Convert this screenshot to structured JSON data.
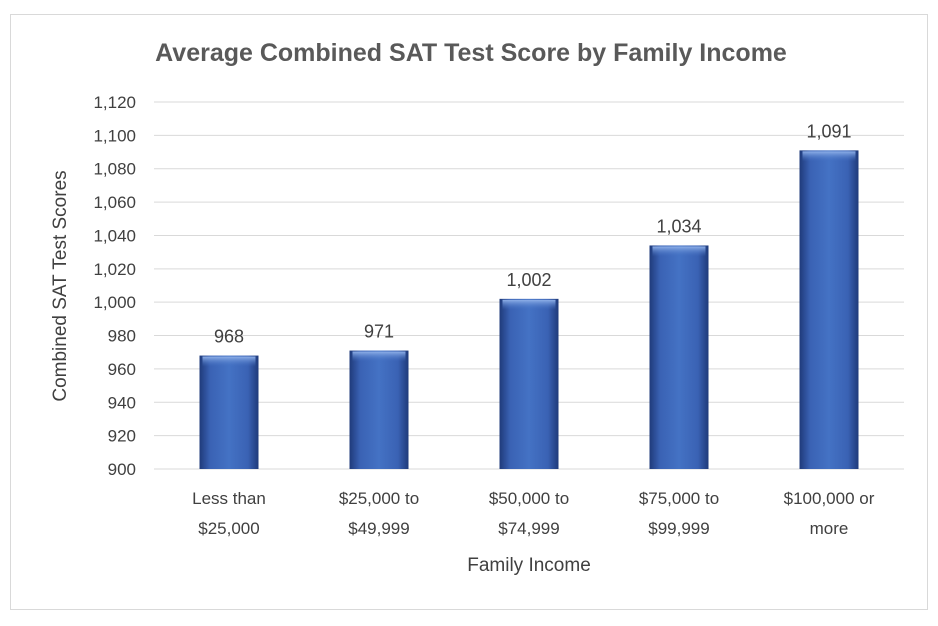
{
  "chart_data": {
    "type": "bar",
    "title": "Average Combined SAT Test Score by Family Income",
    "xlabel": "Family Income",
    "ylabel": "Combined SAT Test Scores",
    "categories": [
      [
        "Less than",
        "$25,000"
      ],
      [
        "$25,000 to",
        "$49,999"
      ],
      [
        "$50,000 to",
        "$74,999"
      ],
      [
        "$75,000 to",
        "$99,999"
      ],
      [
        "$100,000 or",
        "more"
      ]
    ],
    "values": [
      968,
      971,
      1002,
      1034,
      1091
    ],
    "value_labels": [
      "968",
      "971",
      "1,002",
      "1,034",
      "1,091"
    ],
    "ylim": [
      900,
      1120
    ],
    "yticks": [
      900,
      920,
      940,
      960,
      980,
      1000,
      1020,
      1040,
      1060,
      1080,
      1100,
      1120
    ],
    "ytick_labels": [
      "900",
      "920",
      "940",
      "960",
      "980",
      "1,000",
      "1,020",
      "1,040",
      "1,060",
      "1,080",
      "1,100",
      "1,120"
    ],
    "grid": true,
    "bar_color": "#4472c4",
    "bar_dark_color": "#1f3a7a",
    "legend": "none"
  }
}
